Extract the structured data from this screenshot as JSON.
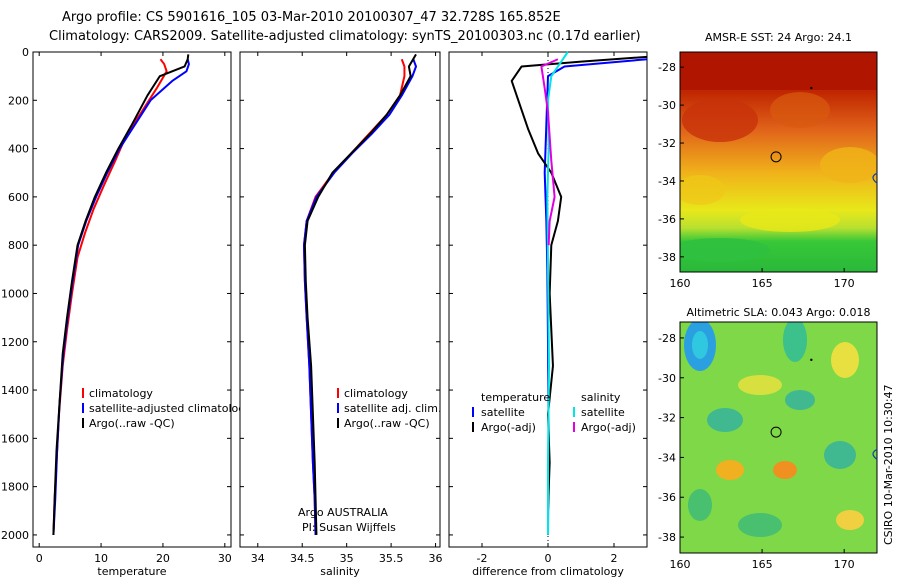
{
  "title_line1": "Argo profile: CS 5901616_105 03-Mar-2010 20100307_47 32.728S 165.852E",
  "title_line2": "Climatology: CARS2009. Satellite-adjusted climatology: synTS_20100303.nc (0.17d earlier)",
  "colors": {
    "climatology": "#ff0000",
    "satellite": "#0000ff",
    "argo": "#000000",
    "salinity_satellite": "#00e5e5",
    "salinity_argo": "#e000e0",
    "marker": "#000000"
  },
  "chart_data": [
    {
      "type": "line",
      "name": "temperature-panel",
      "xlabel": "temperature",
      "ylabel": "",
      "xlim": [
        -1,
        31
      ],
      "ylim": [
        2050,
        0
      ],
      "xticks": [
        0,
        10,
        20,
        30
      ],
      "yticks": [
        0,
        200,
        400,
        600,
        800,
        1000,
        1200,
        1400,
        1600,
        1800,
        2000
      ],
      "legend": [
        "climatology",
        "satellite-adjusted climatology",
        "Argo(..raw -QC)"
      ],
      "legend_position": "bottom-right",
      "series": [
        {
          "name": "climatology",
          "color": "#ff0000",
          "x": [
            19.6,
            20.2,
            20.6,
            19.0,
            16.5,
            14.0,
            12.3,
            10.5,
            8.8,
            7.4,
            6.2,
            5.3,
            4.5,
            3.8,
            3.2,
            2.8,
            2.5,
            2.3
          ],
          "y": [
            30,
            50,
            80,
            150,
            250,
            350,
            450,
            550,
            650,
            750,
            850,
            1000,
            1150,
            1300,
            1500,
            1700,
            1850,
            2000
          ]
        },
        {
          "name": "satellite-adjusted climatology",
          "color": "#0000ff",
          "x": [
            24.0,
            24.2,
            23.8,
            21.5,
            18.0,
            15.5,
            13.0,
            11.0,
            9.2,
            7.6,
            6.3,
            5.4,
            4.6,
            3.9,
            3.3,
            2.9,
            2.6,
            2.3
          ],
          "y": [
            30,
            50,
            80,
            120,
            200,
            300,
            400,
            500,
            600,
            700,
            800,
            950,
            1100,
            1250,
            1450,
            1650,
            1850,
            2000
          ]
        },
        {
          "name": "Argo(..raw -QC)",
          "color": "#000000",
          "x": [
            24.1,
            24.0,
            23.5,
            19.5,
            17.5,
            15.0,
            12.8,
            10.8,
            9.0,
            7.5,
            6.2,
            5.3,
            4.5,
            3.8,
            3.3,
            2.8,
            2.5,
            2.3
          ],
          "y": [
            10,
            30,
            60,
            100,
            180,
            300,
            400,
            500,
            600,
            700,
            800,
            950,
            1100,
            1250,
            1450,
            1650,
            1850,
            2000
          ]
        }
      ]
    },
    {
      "type": "line",
      "name": "salinity-panel",
      "xlabel": "salinity",
      "ylabel": "",
      "xlim": [
        33.8,
        36.05
      ],
      "ylim": [
        2050,
        0
      ],
      "xticks": [
        34,
        34.5,
        35,
        35.5,
        36
      ],
      "legend": [
        "climatology",
        "satellite adj. clim.",
        "Argo(..raw -QC)"
      ],
      "legend_position": "bottom-right",
      "annotation": [
        "Argo AUSTRALIA",
        "PI: Susan Wijffels"
      ],
      "series": [
        {
          "name": "climatology",
          "color": "#ff0000",
          "x": [
            35.62,
            35.65,
            35.65,
            35.6,
            35.45,
            35.25,
            35.05,
            34.85,
            34.65,
            34.55,
            34.52,
            34.53,
            34.55,
            34.58,
            34.6,
            34.62,
            34.64,
            34.65
          ],
          "y": [
            30,
            60,
            100,
            180,
            260,
            340,
            420,
            500,
            600,
            700,
            800,
            950,
            1100,
            1300,
            1500,
            1700,
            1850,
            2000
          ]
        },
        {
          "name": "satellite adj. clim.",
          "color": "#0000ff",
          "x": [
            35.75,
            35.78,
            35.74,
            35.62,
            35.48,
            35.28,
            35.06,
            34.86,
            34.66,
            34.55,
            34.52,
            34.53,
            34.55,
            34.58,
            34.6,
            34.62,
            34.64,
            34.65
          ],
          "y": [
            30,
            60,
            100,
            180,
            260,
            340,
            420,
            500,
            600,
            700,
            800,
            950,
            1100,
            1300,
            1500,
            1700,
            1850,
            2000
          ]
        },
        {
          "name": "Argo(..raw -QC)",
          "color": "#000000",
          "x": [
            35.78,
            35.7,
            35.72,
            35.6,
            35.45,
            35.26,
            35.05,
            34.84,
            34.68,
            34.56,
            34.53,
            34.54,
            34.56,
            34.6,
            34.62,
            34.64,
            34.65,
            34.66
          ],
          "y": [
            10,
            60,
            100,
            180,
            260,
            340,
            420,
            500,
            600,
            700,
            800,
            950,
            1100,
            1300,
            1500,
            1700,
            1850,
            2000
          ]
        }
      ]
    },
    {
      "type": "line",
      "name": "difference-panel",
      "xlabel": "difference from climatology",
      "ylabel": "",
      "xlim": [
        -3,
        3
      ],
      "ylim": [
        2050,
        0
      ],
      "xticks": [
        -2,
        0,
        2
      ],
      "legend_groups": [
        {
          "header": "temperature",
          "items": [
            "satellite",
            "Argo(-adj)"
          ]
        },
        {
          "header": "salinity",
          "items": [
            "satellite",
            "Argo(-adj)"
          ]
        }
      ],
      "legend_position": "bottom",
      "series": [
        {
          "name": "temperature satellite",
          "color": "#0000ff",
          "x": [
            3.0,
            0.5,
            0.0,
            -0.05,
            -0.1,
            -0.05,
            -0.02,
            0.0,
            0.02,
            0.0
          ],
          "y": [
            30,
            60,
            100,
            300,
            500,
            700,
            900,
            1200,
            1600,
            2000
          ]
        },
        {
          "name": "temperature Argo(-adj)",
          "color": "#000000",
          "x": [
            3.0,
            1.0,
            -0.8,
            -1.1,
            -0.9,
            -0.6,
            -0.3,
            0.1,
            0.4,
            0.3,
            0.1,
            0.05,
            0.15,
            0.0,
            0.05,
            0.0,
            0.0
          ],
          "y": [
            20,
            40,
            60,
            120,
            200,
            320,
            420,
            500,
            600,
            700,
            800,
            1000,
            1300,
            1500,
            1700,
            1900,
            2000
          ]
        },
        {
          "name": "salinity satellite",
          "color": "#00e5e5",
          "x": [
            0.6,
            0.1,
            0.0,
            0.02,
            -0.02,
            0.0,
            0.03,
            0.0,
            0.0
          ],
          "y": [
            0,
            100,
            200,
            400,
            600,
            900,
            1300,
            1700,
            2000
          ]
        },
        {
          "name": "salinity Argo(-adj)",
          "color": "#e000e0",
          "x": [
            0.3,
            -0.2,
            -0.1,
            0.0,
            0.05,
            0.1,
            0.2,
            0.05,
            0.02
          ],
          "y": [
            30,
            60,
            150,
            250,
            350,
            450,
            600,
            700,
            800
          ]
        }
      ]
    },
    {
      "type": "heatmap",
      "name": "sst-map",
      "title": "AMSR-E SST: 24 Argo: 24.1",
      "xlim": [
        160,
        172
      ],
      "ylim": [
        -38.8,
        -27.2
      ],
      "xticks": [
        160,
        165,
        170
      ],
      "yticks": [
        -28,
        -30,
        -32,
        -34,
        -36,
        -38
      ],
      "marker": {
        "lon": 165.852,
        "lat": -32.728
      }
    },
    {
      "type": "heatmap",
      "name": "sla-map",
      "title": "Altimetric SLA: 0.043 Argo: 0.018",
      "xlim": [
        160,
        172
      ],
      "ylim": [
        -38.8,
        -27.2
      ],
      "xticks": [
        160,
        165,
        170
      ],
      "yticks": [
        -28,
        -30,
        -32,
        -34,
        -36,
        -38
      ],
      "marker": {
        "lon": 165.852,
        "lat": -32.728
      }
    }
  ],
  "credit": "CSIRO 10-Mar-2010 10:30:47"
}
